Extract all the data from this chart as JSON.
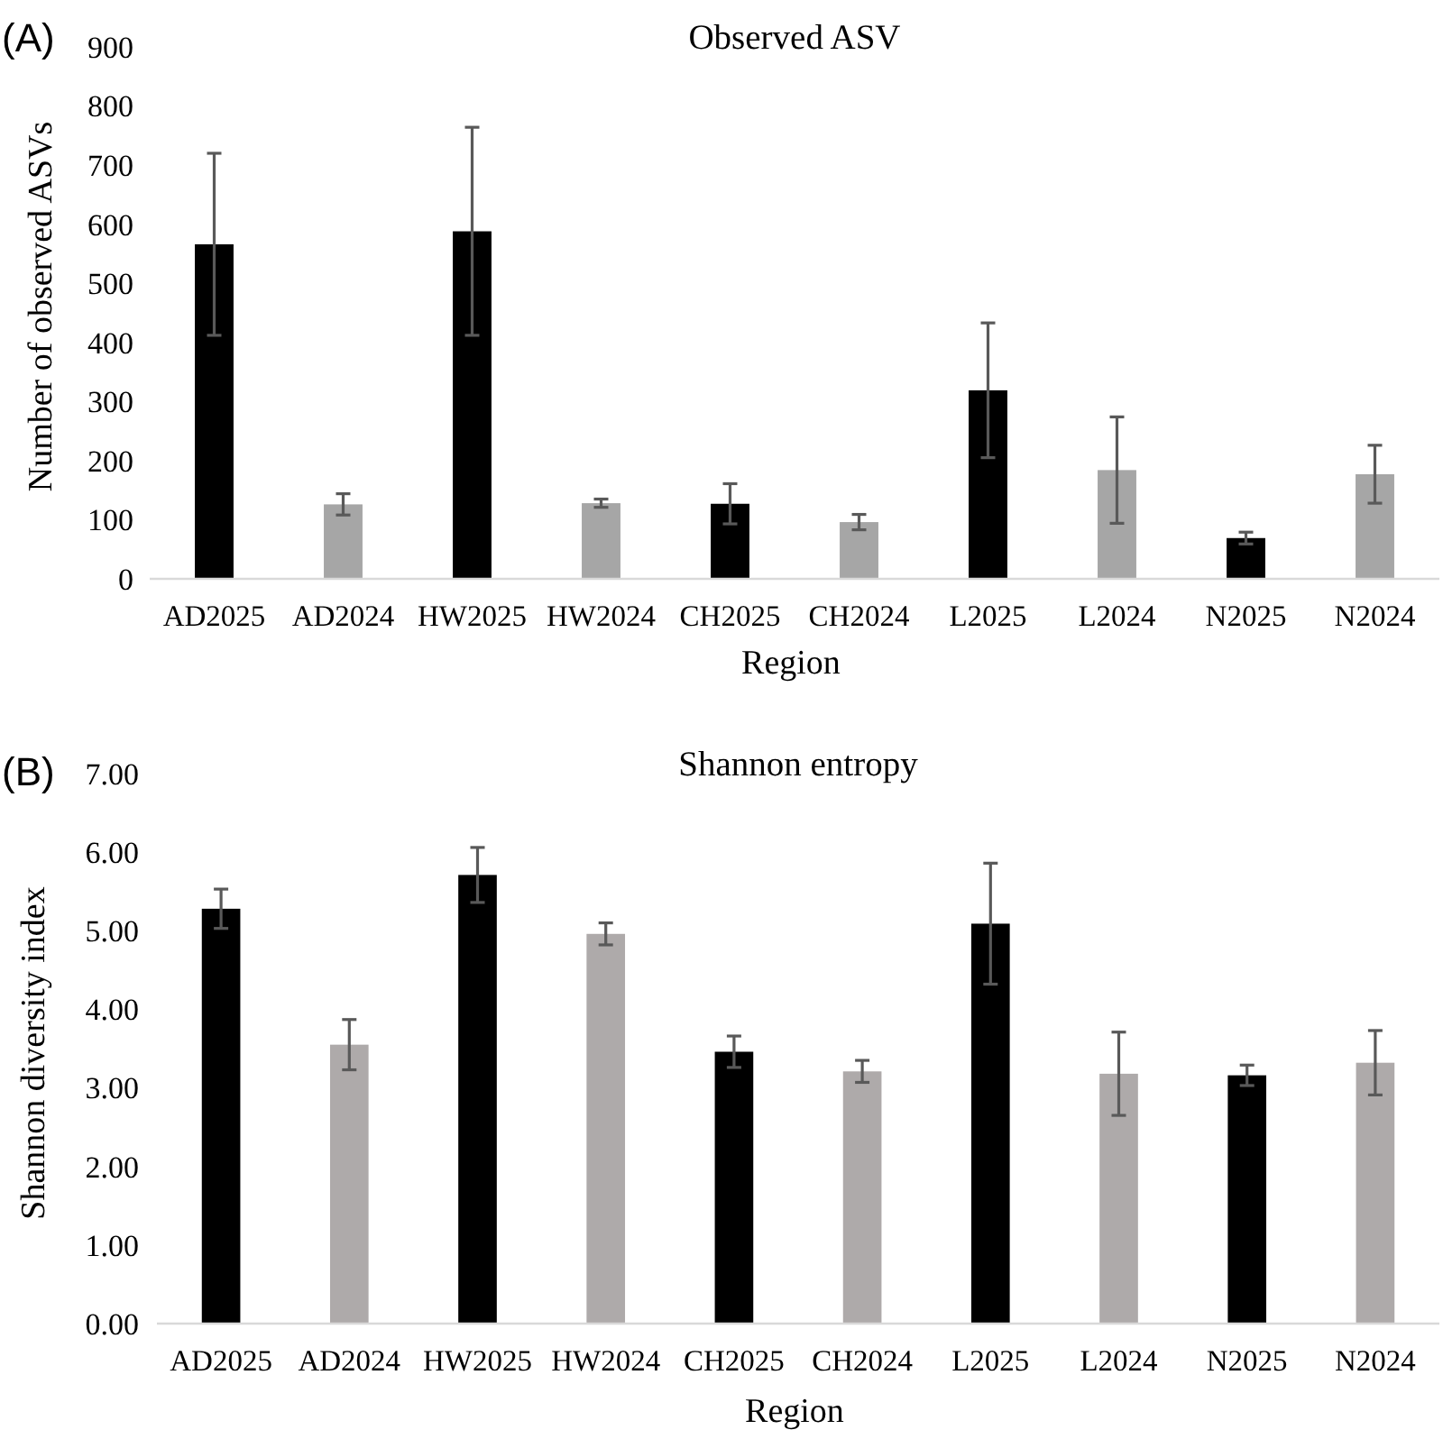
{
  "chart_data": [
    {
      "type": "bar",
      "title": "Observed ASV",
      "xlabel": "Region",
      "ylabel": "Number of observed ASVs",
      "annotations": [
        "(A)"
      ],
      "categories": [
        "AD2025",
        "AD2024",
        "HW2025",
        "HW2024",
        "CH2025",
        "CH2024",
        "L2025",
        "L2024",
        "N2025",
        "N2024"
      ],
      "values": [
        566,
        126,
        588,
        128,
        127,
        96,
        319,
        184,
        69,
        177
      ],
      "errors": [
        154,
        18,
        176,
        7,
        34,
        13,
        114,
        90,
        10,
        49
      ],
      "colors": [
        "#000000",
        "#a6a6a6",
        "#000000",
        "#a6a6a6",
        "#000000",
        "#a6a6a6",
        "#000000",
        "#a6a6a6",
        "#000000",
        "#a6a6a6"
      ],
      "ylim": [
        0,
        900
      ],
      "yticks": [
        0,
        100,
        200,
        300,
        400,
        500,
        600,
        700,
        800,
        900
      ]
    },
    {
      "type": "bar",
      "title": "Shannon entropy",
      "xlabel": "Region",
      "ylabel": "Shannon diversity index",
      "annotations": [
        "(B)"
      ],
      "categories": [
        "AD2025",
        "AD2024",
        "HW2025",
        "HW2024",
        "CH2025",
        "CH2024",
        "L2025",
        "L2024",
        "N2025",
        "N2024"
      ],
      "values": [
        5.28,
        3.55,
        5.71,
        4.96,
        3.46,
        3.21,
        5.09,
        3.18,
        3.16,
        3.32
      ],
      "errors": [
        0.25,
        0.32,
        0.35,
        0.14,
        0.2,
        0.14,
        0.77,
        0.53,
        0.13,
        0.41
      ],
      "colors": [
        "#000000",
        "#aeaaaa",
        "#000000",
        "#aeaaaa",
        "#000000",
        "#aeaaaa",
        "#000000",
        "#aeaaaa",
        "#000000",
        "#aeaaaa"
      ],
      "ylim": [
        0,
        7
      ],
      "yticks": [
        {
          "value": 0,
          "label": "0.00"
        },
        {
          "value": 1,
          "label": "1.00"
        },
        {
          "value": 2,
          "label": "2.00"
        },
        {
          "value": 3,
          "label": "3.00"
        },
        {
          "value": 4,
          "label": "4.00"
        },
        {
          "value": 5,
          "label": "5.00"
        },
        {
          "value": 6,
          "label": "6.00"
        },
        {
          "value": 7,
          "label": "7.00"
        }
      ]
    }
  ]
}
